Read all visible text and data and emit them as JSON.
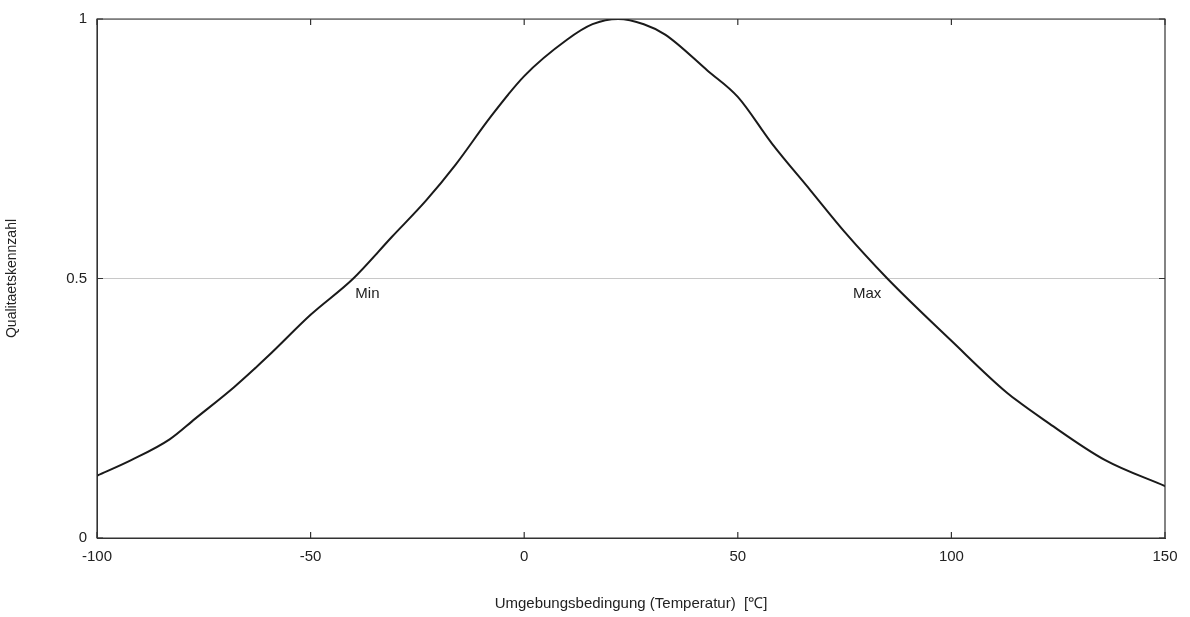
{
  "chart_data": {
    "type": "line",
    "xlabel": "Umgebungsbedingung (Temperatur)  [℃]",
    "ylabel": "Qualitaetskennzahl",
    "xlim": [
      -100,
      150
    ],
    "xticks": [
      -100,
      -50,
      0,
      50,
      100,
      150
    ],
    "ylim": [
      0,
      1
    ],
    "yticks": [
      0,
      0.5,
      1
    ],
    "grid": "y",
    "marker": "none",
    "line_style": "solid",
    "annotations": [
      {
        "text": "Min",
        "x": -40,
        "y": 0.5
      },
      {
        "text": "Max",
        "x": 85,
        "y": 0.5
      }
    ],
    "series": [
      {
        "color": "#1a1a1a",
        "x": [
          -100,
          -92,
          -83,
          -77,
          -68,
          -60,
          -50,
          -40,
          -31,
          -23,
          -16,
          -8,
          0,
          10,
          16,
          22,
          28,
          33,
          43,
          50,
          58,
          67,
          75,
          85,
          100,
          113,
          123,
          136,
          150
        ],
        "values": [
          0.12,
          0.15,
          0.19,
          0.23,
          0.29,
          0.35,
          0.43,
          0.5,
          0.58,
          0.65,
          0.72,
          0.81,
          0.89,
          0.96,
          0.99,
          1,
          0.99,
          0.97,
          0.9,
          0.85,
          0.76,
          0.67,
          0.59,
          0.5,
          0.38,
          0.28,
          0.22,
          0.15,
          0.1
        ]
      }
    ]
  }
}
